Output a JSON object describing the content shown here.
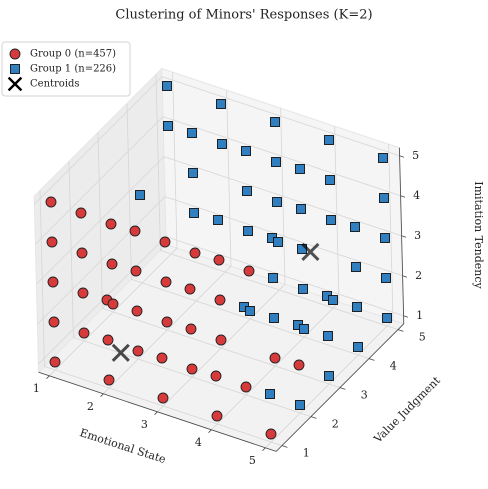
{
  "chart_data": {
    "type": "scatter3d",
    "title": "Clustering of Minors' Responses (K=2)",
    "xlabel": "Emotional State",
    "ylabel": "Value Judgment",
    "zlabel": "Imitation Tendency",
    "xlim": [
      0.8,
      5.2
    ],
    "ylim": [
      0.8,
      5.2
    ],
    "zlim": [
      0.8,
      5.2
    ],
    "xticks": [
      1,
      2,
      3,
      4,
      5
    ],
    "yticks": [
      1,
      2,
      3,
      4,
      5
    ],
    "zticks": [
      1,
      2,
      3,
      4,
      5
    ],
    "grid": true,
    "legend": "upper left",
    "series": [
      {
        "name": "Group 0 (n=457)",
        "color": "#d63a3a",
        "marker": "circle",
        "points": [
          [
            1,
            1,
            1
          ],
          [
            2,
            1,
            1
          ],
          [
            3,
            1,
            1
          ],
          [
            4,
            1,
            1
          ],
          [
            5,
            1,
            1
          ],
          [
            1,
            1,
            2
          ],
          [
            2,
            1,
            2
          ],
          [
            3,
            1,
            2
          ],
          [
            4,
            1,
            2
          ],
          [
            1,
            1,
            3
          ],
          [
            2,
            1,
            3
          ],
          [
            1,
            1,
            4
          ],
          [
            1,
            1,
            5
          ],
          [
            1,
            2,
            1
          ],
          [
            2,
            2,
            1
          ],
          [
            3,
            2,
            1
          ],
          [
            4,
            2,
            1
          ],
          [
            1,
            2,
            2
          ],
          [
            2,
            2,
            2
          ],
          [
            3,
            2,
            2
          ],
          [
            1,
            2,
            3
          ],
          [
            2,
            2,
            3
          ],
          [
            3,
            2,
            3
          ],
          [
            1,
            2,
            4
          ],
          [
            2,
            2,
            4
          ],
          [
            1,
            3,
            1
          ],
          [
            2,
            3,
            1
          ],
          [
            3,
            3,
            1
          ],
          [
            1,
            3,
            2
          ],
          [
            2,
            3,
            2
          ],
          [
            3,
            3,
            2
          ],
          [
            2,
            3,
            3
          ],
          [
            3,
            3,
            3
          ],
          [
            1,
            3,
            3
          ],
          [
            2,
            4,
            2
          ],
          [
            3,
            4,
            2
          ],
          [
            5,
            2,
            2
          ],
          [
            4,
            3,
            1
          ]
        ]
      },
      {
        "name": "Group 1 (n=226)",
        "color": "#2f7fc1",
        "marker": "square",
        "points": [
          [
            1,
            5,
            5
          ],
          [
            2,
            5,
            5
          ],
          [
            3,
            5,
            5
          ],
          [
            4,
            5,
            5
          ],
          [
            5,
            5,
            5
          ],
          [
            4,
            4,
            5
          ],
          [
            3,
            4,
            5
          ],
          [
            2,
            4,
            5
          ],
          [
            1,
            5,
            4
          ],
          [
            2,
            5,
            4
          ],
          [
            3,
            5,
            4
          ],
          [
            4,
            5,
            4
          ],
          [
            5,
            5,
            4
          ],
          [
            3,
            4,
            4
          ],
          [
            4,
            4,
            4
          ],
          [
            5,
            4,
            4
          ],
          [
            2,
            4,
            4
          ],
          [
            4,
            3,
            4
          ],
          [
            1,
            4,
            3
          ],
          [
            2,
            4,
            3
          ],
          [
            3,
            4,
            3
          ],
          [
            4,
            4,
            3
          ],
          [
            5,
            4,
            3
          ],
          [
            5,
            5,
            3
          ],
          [
            4,
            5,
            3
          ],
          [
            3,
            5,
            3
          ],
          [
            4,
            3,
            3
          ],
          [
            5,
            3,
            3
          ],
          [
            3,
            3,
            4
          ],
          [
            4,
            2,
            3
          ],
          [
            5,
            2,
            3
          ],
          [
            5,
            3,
            2
          ],
          [
            4,
            3,
            2
          ],
          [
            4,
            4,
            2
          ],
          [
            5,
            4,
            2
          ],
          [
            5,
            5,
            2
          ],
          [
            3,
            5,
            2
          ],
          [
            3,
            4,
            1
          ],
          [
            4,
            4,
            1
          ],
          [
            5,
            4,
            1
          ],
          [
            5,
            5,
            1
          ],
          [
            4,
            5,
            1
          ],
          [
            5,
            3,
            1
          ],
          [
            5,
            2,
            1
          ],
          [
            5,
            1,
            2
          ]
        ]
      },
      {
        "name": "Centroids",
        "color": "#000000",
        "marker": "x",
        "points": [
          [
            1.9,
            1.6,
            1.2
          ],
          [
            4.1,
            4.1,
            2.9
          ]
        ]
      }
    ]
  }
}
